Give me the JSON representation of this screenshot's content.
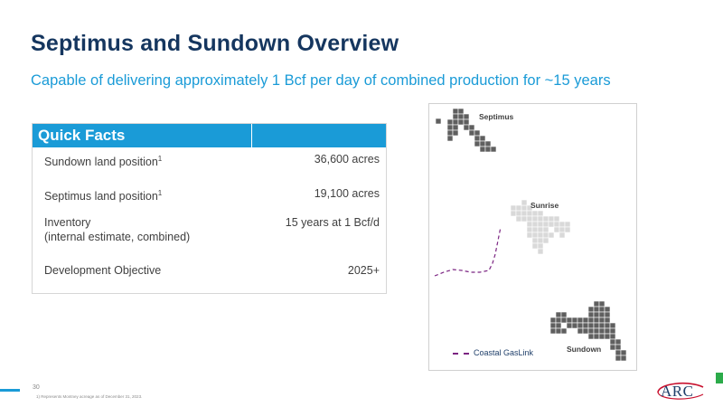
{
  "title": "Septimus and Sundown Overview",
  "subtitle": "Capable of delivering approximately 1 Bcf per day of combined production for ~15 years",
  "quick_facts": {
    "header": "Quick Facts",
    "rows": [
      {
        "label": "Sundown land position",
        "sup": "1",
        "label2": "",
        "value": "36,600 acres"
      },
      {
        "label": "Septimus land position",
        "sup": "1",
        "label2": "",
        "value": "19,100 acres"
      },
      {
        "label": "Inventory",
        "sup": "",
        "label2": "(internal estimate, combined)",
        "value": "15 years at 1 Bcf/d"
      },
      {
        "label": "Development Objective",
        "sup": "",
        "label2": "",
        "value": "2025+"
      }
    ]
  },
  "map": {
    "labels": {
      "septimus": "Septimus",
      "sunrise": "Sunrise",
      "sundown": "Sundown"
    },
    "legend": "Coastal GasLink",
    "colors": {
      "septimus": "#5f5f5f",
      "sunrise": "#d9d9d9",
      "sundown": "#5f5f5f",
      "pipeline": "#7b2482"
    }
  },
  "footer": {
    "page_number": "30",
    "footnote": "1)    Represents Montney acreage as of December 31, 2023."
  },
  "logo": {
    "text": "ARC"
  }
}
